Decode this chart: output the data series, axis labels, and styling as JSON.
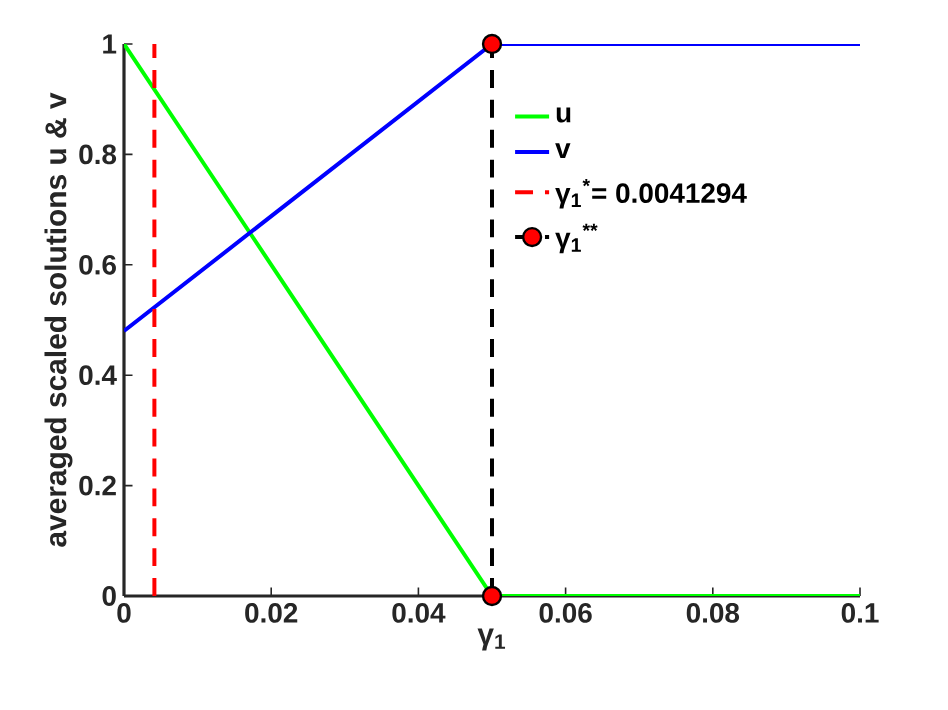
{
  "chart_data": {
    "type": "line",
    "xlabel": "γ$_{1}$",
    "ylabel": "averaged scaled solutions u & v",
    "xlim": [
      0,
      0.1
    ],
    "ylim": [
      0,
      1
    ],
    "xticks": [
      0,
      0.02,
      0.04,
      0.06,
      0.08,
      0.1
    ],
    "yticks": [
      0,
      0.2,
      0.4,
      0.6,
      0.8,
      1
    ],
    "grid": false,
    "legend": "top right",
    "series": [
      {
        "name": "u",
        "color": "#00ff00",
        "x": [
          0,
          0.05,
          0.1
        ],
        "values": [
          1,
          0,
          0
        ],
        "line_style": "solid",
        "marker": "none"
      },
      {
        "name": "v",
        "color": "#0000ff",
        "x": [
          0,
          0.05,
          0.1
        ],
        "values": [
          0.48,
          1,
          1
        ],
        "line_style": "solid",
        "marker": "none"
      },
      {
        "name": "γ$_{1}$$^{*}$= 0.0041294",
        "color": "#ff0000",
        "x": [
          0.0041294,
          0.0041294
        ],
        "values": [
          0,
          1
        ],
        "line_style": "dashed",
        "marker": "none"
      },
      {
        "name": "γ$_{1}$$^{**}$",
        "color": "#000000",
        "colors": [
          "#ff0000",
          "#ff0000"
        ],
        "x": [
          0.05,
          0.05
        ],
        "values": [
          0,
          1
        ],
        "line_style": "dashed",
        "marker": "circle"
      }
    ]
  }
}
